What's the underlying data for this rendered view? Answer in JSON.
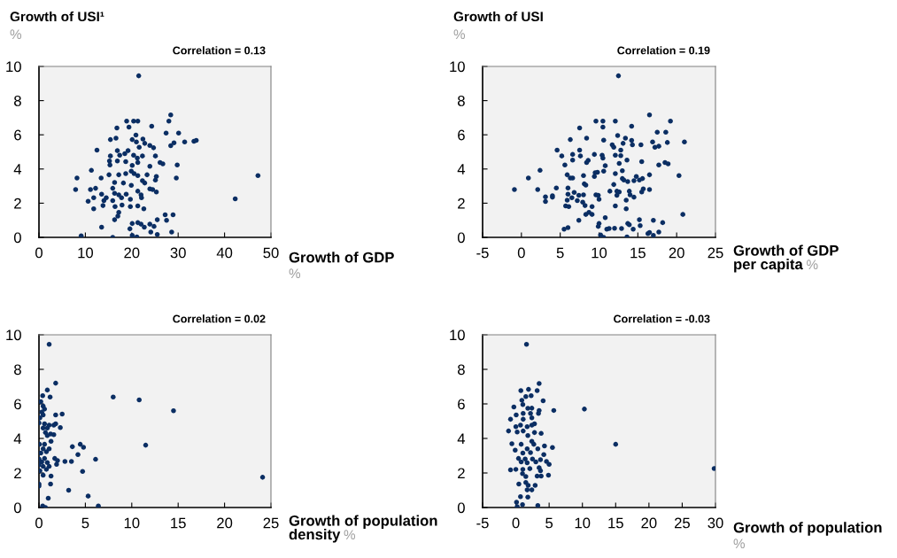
{
  "chart_data": [
    {
      "type": "scatter",
      "title": "Growth of USI¹",
      "ylabel": "%",
      "xlabel": "Growth of GDP",
      "annotations": [
        "Correlation = 0.13",
        "%"
      ],
      "color": "#0b2e63",
      "marker": "circle",
      "grid": false,
      "legend": false,
      "xlim": [
        0,
        50
      ],
      "xticks": [
        0,
        10,
        20,
        30,
        40,
        50
      ],
      "ylim": [
        0,
        10
      ],
      "yticks": [
        0,
        2,
        4,
        6,
        8,
        10
      ],
      "x": [
        21.5,
        28.4,
        28,
        18.9,
        20.4,
        21.3,
        16.8,
        19.4,
        24.3,
        27.4,
        30.1,
        20.9,
        15.4,
        16.6,
        20.1,
        21,
        22.4,
        29.1,
        28.4,
        31.4,
        33.4,
        33.9,
        22.8,
        23.9,
        24.7,
        21.6,
        12.5,
        16.9,
        19.2,
        15.4,
        17.4,
        18.5,
        20.4,
        21.2,
        22.3,
        25.1,
        15.2,
        16.9,
        18.7,
        21.3,
        15.3,
        20.1,
        23.9,
        26.1,
        26.7,
        29.8,
        11.3,
        8.2,
        13.4,
        15.1,
        17.2,
        18.7,
        19.9,
        20.5,
        21.3,
        23.3,
        25.3,
        29.6,
        47.2,
        16.3,
        18.2,
        19.9,
        22.3,
        22.8,
        25.1,
        7.9,
        11.1,
        12.2,
        15.9,
        16.3,
        17.2,
        18.8,
        21.3,
        22,
        23.9,
        24.5,
        25.3,
        13.5,
        11.8,
        14.5,
        10.6,
        14,
        15.9,
        17.8,
        19.7,
        22.1,
        42.3,
        11.8,
        13.8,
        16.4,
        17.9,
        19.7,
        21.3,
        22.6,
        17.2,
        17,
        16.3,
        27.2,
        28.9,
        27.5,
        13.5,
        20.1,
        19.6,
        21.3,
        22,
        22.7,
        23.9,
        24.8,
        25.5,
        24.1,
        25.5,
        28.6,
        9.1,
        15.9,
        20.1,
        21.1
      ],
      "values": [
        9.45,
        7.16,
        6.8,
        6.8,
        6.8,
        6.8,
        6.4,
        6.45,
        6.5,
        6.1,
        6.1,
        5.98,
        5.72,
        5.8,
        5.72,
        5.58,
        5.75,
        5.53,
        5.36,
        5.58,
        5.62,
        5.67,
        5.5,
        5.38,
        5.24,
        5.27,
        5.1,
        5.07,
        5.07,
        4.76,
        4.81,
        4.9,
        4.81,
        4.64,
        4.76,
        4.76,
        4.47,
        4.47,
        4.43,
        4.38,
        4.24,
        4.21,
        4.16,
        4.38,
        4.3,
        4.24,
        3.92,
        3.47,
        3.47,
        3.66,
        3.66,
        3.73,
        3.87,
        3.73,
        3.61,
        3.66,
        3.56,
        3.47,
        3.61,
        3.21,
        3.18,
        3.04,
        3.32,
        3.18,
        3.35,
        2.8,
        2.8,
        2.87,
        2.87,
        2.58,
        2.49,
        2.53,
        2.7,
        2.49,
        2.84,
        2.8,
        2.66,
        2.53,
        2.32,
        2.32,
        2.11,
        2.15,
        2.15,
        2.32,
        2.23,
        2.32,
        2.25,
        1.67,
        1.86,
        1.8,
        1.89,
        1.8,
        1.84,
        1.67,
        1.46,
        1.24,
        1.03,
        1.32,
        1.32,
        1.0,
        0.6,
        0.81,
        0.5,
        0.86,
        0.77,
        0.6,
        0.77,
        0.64,
        1.03,
        0.31,
        0.17,
        0.31,
        0.09,
        0.0,
        0.12,
        0.03
      ]
    },
    {
      "type": "scatter",
      "title": "Growth of USI",
      "ylabel": "%",
      "xlabel": "Growth of GDP\nper capita",
      "annotations": [
        "Correlation = 0.19",
        "%"
      ],
      "color": "#0b2e63",
      "marker": "circle",
      "grid": false,
      "legend": false,
      "xlim": [
        -5,
        25
      ],
      "xticks": [
        {
          "value": -5,
          "label": "-5"
        },
        0,
        5,
        10,
        15,
        20,
        25
      ],
      "ylim": [
        0,
        10
      ],
      "yticks": [
        0,
        2,
        4,
        6,
        8,
        10
      ],
      "x": [
        12.5,
        16.5,
        9.6,
        10.5,
        12.1,
        19.2,
        10.5,
        14.2,
        7.5,
        17.5,
        18.6,
        12.4,
        6.3,
        8.4,
        10.6,
        13.4,
        14.2,
        16.9,
        18.8,
        21,
        11.7,
        11.9,
        13.1,
        14.3,
        15.4,
        17.2,
        17.7,
        4.6,
        7.5,
        12.8,
        6.6,
        5.2,
        7.6,
        9.4,
        10.4,
        12.1,
        12.8,
        6.6,
        8.6,
        10.5,
        10.8,
        12.6,
        13.6,
        15.5,
        5.6,
        8.4,
        17.7,
        18.5,
        18.9,
        2.4,
        9.5,
        9.8,
        10.6,
        13,
        0.9,
        5.9,
        6.3,
        6.6,
        8.0,
        9.4,
        12.1,
        13.0,
        13.2,
        13.7,
        14.5,
        14.8,
        15.2,
        15.6,
        16.5,
        20.3,
        8.1,
        8.3,
        11.9,
        -0.9,
        2.1,
        4.5,
        6.0,
        11.4,
        12.3,
        12.6,
        13.9,
        15.7,
        16.5,
        15.5,
        3.1,
        4.0,
        6,
        6.8,
        7.4,
        8.0,
        9.6,
        9.9,
        12.3,
        14,
        3.1,
        4,
        5.9,
        6.5,
        7.2,
        7.9,
        10,
        13.5,
        14.5,
        5.7,
        6.1,
        8.2,
        9.1,
        12.1,
        13.5,
        8.3,
        8.7,
        9.1,
        20.8,
        10.8,
        7.4,
        15.2,
        17,
        5.5,
        6,
        10,
        9.9,
        11,
        11.3,
        12,
        12.9,
        13.7,
        13.9,
        14.4,
        15.3,
        18.2,
        10.2,
        10.6,
        13.6,
        16.3,
        17,
        17.7,
        16.5
      ],
      "values": [
        9.45,
        7.16,
        6.8,
        6.8,
        6.8,
        6.8,
        6.45,
        6.5,
        6.4,
        6.15,
        6.15,
        5.96,
        5.72,
        5.8,
        5.69,
        5.8,
        5.67,
        5.58,
        5.55,
        5.58,
        5.41,
        5.27,
        5.5,
        5.41,
        5.41,
        5.27,
        5.33,
        5.1,
        5.1,
        5.1,
        4.85,
        4.76,
        4.76,
        4.85,
        4.81,
        4.81,
        4.78,
        4.52,
        4.5,
        4.64,
        4.19,
        4.33,
        4.52,
        4.43,
        4.24,
        4.38,
        4.24,
        4.38,
        4.3,
        3.92,
        3.78,
        3.81,
        3.87,
        3.9,
        3.47,
        3.66,
        3.47,
        3.47,
        3.61,
        3.56,
        3.73,
        3.44,
        3.35,
        3.26,
        3.32,
        3.56,
        3.35,
        3.44,
        3.66,
        3.61,
        3.13,
        3.06,
        3.09,
        2.8,
        2.8,
        2.89,
        2.89,
        2.7,
        2.7,
        2.66,
        2.7,
        2.84,
        2.8,
        2.66,
        2.37,
        2.44,
        2.53,
        2.63,
        2.46,
        2.49,
        2.49,
        2.46,
        2.46,
        2.49,
        2.1,
        2.35,
        2.18,
        2.32,
        2.15,
        2.06,
        2.23,
        2.18,
        2.35,
        1.84,
        1.8,
        1.86,
        1.8,
        1.84,
        1.67,
        1.34,
        1.46,
        1.34,
        1.34,
        1.15,
        1.0,
        1.03,
        1.0,
        0.48,
        0.57,
        0.81,
        0.64,
        0.48,
        0.52,
        0.53,
        0.52,
        0.81,
        0.74,
        0.48,
        0.69,
        0.86,
        0.14,
        0,
        0.03,
        0.22,
        0.12,
        0.31,
        0.29
      ]
    },
    {
      "type": "scatter",
      "xlabel": "Growth of population\ndensity",
      "annotations": [
        "Correlation = 0.02",
        "%"
      ],
      "color": "#0b2e63",
      "marker": "circle",
      "grid": false,
      "legend": false,
      "xlim": [
        0,
        25
      ],
      "xticks": [
        0,
        5,
        10,
        15,
        20,
        25
      ],
      "ylim": [
        0,
        10
      ],
      "yticks": [
        0,
        2,
        4,
        6,
        8,
        10
      ],
      "x": [
        1.1,
        1.8,
        0.9,
        0.4,
        1.2,
        8.0,
        10.8,
        14.5,
        0.2,
        0.45,
        0.6,
        0.3,
        0.45,
        0.1,
        1.8,
        2.5,
        0,
        0.6,
        1.1,
        1.8,
        2.3,
        1.6,
        0.45,
        0.9,
        0.7,
        1.25,
        1.6,
        0.9,
        1.3,
        0.06,
        0.6,
        3.6,
        4.45,
        4.8,
        11.5,
        0.45,
        1.1,
        0.8,
        0.2,
        4.2,
        0,
        0.6,
        1.7,
        6.1,
        0.3,
        0.9,
        2,
        2.8,
        3.5,
        0,
        0.45,
        1.1,
        1.9,
        0.1,
        0.8,
        4.7,
        0.45,
        1.3,
        24.1,
        0,
        0,
        1.25,
        3.2,
        5.3,
        1.0,
        6.4,
        0.4,
        0.7
      ],
      "values": [
        9.45,
        7.2,
        6.8,
        6.47,
        6.4,
        6.4,
        6.23,
        5.6,
        6.13,
        5.87,
        5.7,
        5.53,
        5.36,
        5.19,
        5.36,
        5.41,
        4.9,
        4.85,
        4.77,
        4.85,
        4.63,
        4.77,
        4.6,
        4.6,
        4.34,
        4.26,
        4.22,
        4.17,
        3.83,
        3.66,
        3.66,
        3.52,
        3.66,
        3.49,
        3.61,
        3.4,
        3.4,
        3.23,
        3.15,
        3.06,
        2.81,
        2.84,
        2.84,
        2.79,
        2.64,
        2.6,
        2.72,
        2.67,
        2.67,
        2.47,
        2.38,
        2.38,
        2.5,
        2.13,
        2.21,
        2.09,
        1.87,
        1.82,
        1.75,
        1.36,
        1.24,
        1.36,
        1.0,
        0.66,
        0.54,
        0.09,
        0.09,
        0.0
      ]
    },
    {
      "type": "scatter",
      "xlabel": "Growth of population",
      "annotations": [
        "Correlation = -0.03",
        "%"
      ],
      "color": "#0b2e63",
      "marker": "circle",
      "grid": false,
      "legend": false,
      "xlim": [
        -5,
        30
      ],
      "xticks": [
        {
          "value": -5,
          "label": "-5"
        },
        0,
        5,
        10,
        15,
        20,
        25,
        30
      ],
      "ylim": [
        0,
        10
      ],
      "yticks": [
        0,
        2,
        4,
        6,
        8,
        10
      ],
      "x": [
        1.6,
        3.5,
        0.75,
        1.9,
        3.2,
        2.3,
        1.5,
        4.1,
        0.9,
        1.05,
        -0.3,
        1.8,
        2.4,
        3.5,
        5.7,
        10.3,
        0.05,
        1.1,
        2.2,
        3.4,
        -0.8,
        1.1,
        2.4,
        2.8,
        0,
        0.7,
        1.7,
        2.4,
        -1.1,
        0.2,
        1.1,
        2.8,
        3.8,
        1.8,
        -0.6,
        0.8,
        2.4,
        2.7,
        4.3,
        5.5,
        15.0,
        -0.1,
        1.7,
        3.3,
        2.2,
        1.05,
        4.2,
        0.4,
        1.4,
        2.5,
        3.7,
        0.8,
        1.7,
        3.0,
        4.6,
        5.0,
        -0.8,
        0,
        1.05,
        2.1,
        3.5,
        3.7,
        29.8,
        1.0,
        1.5,
        3.2,
        3.8,
        4.9,
        0.45,
        1.5,
        1.85,
        2.9,
        1.7,
        2.4,
        0.7,
        1.8,
        0.1,
        1.0,
        3.3,
        0.2
      ],
      "values": [
        9.45,
        7.18,
        6.77,
        6.84,
        6.77,
        6.47,
        6.42,
        6.18,
        6.21,
        5.96,
        5.82,
        5.74,
        5.75,
        5.62,
        5.62,
        5.7,
        5.36,
        5.45,
        5.45,
        5.45,
        5.11,
        5.11,
        5.19,
        4.85,
        4.68,
        4.77,
        4.68,
        4.77,
        4.43,
        4.37,
        4.43,
        4.34,
        4.29,
        4.17,
        3.69,
        3.66,
        3.83,
        3.66,
        3.56,
        3.47,
        3.66,
        3.32,
        3.4,
        3.4,
        3.18,
        3.15,
        3.06,
        2.84,
        2.81,
        2.81,
        2.77,
        2.64,
        2.59,
        2.64,
        2.67,
        2.5,
        2.18,
        2.21,
        2.21,
        2.25,
        2.3,
        2.13,
        2.26,
        1.96,
        1.79,
        1.82,
        1.82,
        1.87,
        1.36,
        1.45,
        1.28,
        1.28,
        1.02,
        1.02,
        0.63,
        0.6,
        0.31,
        0.17,
        0.12,
        0.05
      ]
    }
  ]
}
